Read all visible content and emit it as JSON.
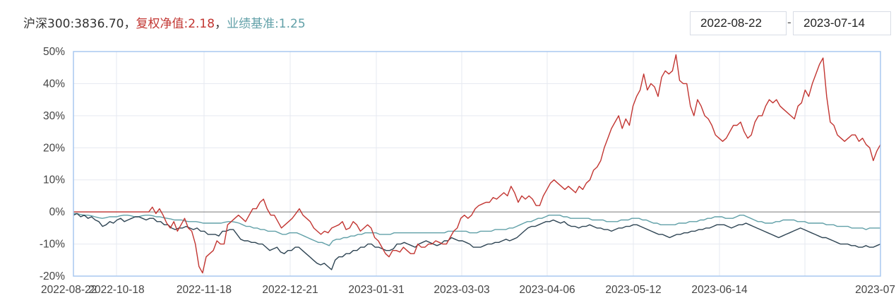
{
  "legend": {
    "hs300_label": "沪深300:3836.70",
    "sep1": "，",
    "nav_label": "复权净值:2.18",
    "sep2": "，",
    "bench_label": "业绩基准:1.25"
  },
  "date_range": {
    "start": "2022-08-22",
    "separator": "-",
    "end": "2023-07-14"
  },
  "chart_data": {
    "type": "line",
    "x_tick_labels": [
      "2022-08-22",
      "2022-10-18",
      "2022-11-18",
      "2022-12-21",
      "2023-01-31",
      "2023-03-03",
      "2023-04-06",
      "2023-05-12",
      "2023-06-14",
      "2023-07"
    ],
    "y_tick_labels": [
      "-20%",
      "-10%",
      "0%",
      "10%",
      "20%",
      "30%",
      "40%",
      "50%"
    ],
    "ylim": [
      -20,
      50
    ],
    "y_unit": "%",
    "grid": true,
    "colors": {
      "nav": "#c23531",
      "hs300": "#2f4554",
      "bench": "#61a0a8",
      "border": "#a8c8f0",
      "grid": "#e6e9f0"
    },
    "series": [
      {
        "key": "nav",
        "values": [
          0,
          0,
          0,
          0,
          0,
          0,
          0,
          0,
          0,
          0,
          0,
          0,
          0,
          0,
          0,
          0,
          0,
          0,
          0,
          0,
          0,
          0,
          1.5,
          -0.5,
          1,
          -1,
          -3.5,
          -5,
          -3,
          -6,
          -4,
          -2,
          -5,
          -6,
          -10,
          -17,
          -19,
          -14,
          -13,
          -12,
          -9,
          -10,
          -10,
          -4,
          -3,
          -2,
          -1,
          -2,
          -3,
          -1,
          1,
          1,
          3,
          4,
          1,
          -1,
          -1,
          -3,
          -5,
          -4,
          -3,
          -2,
          -0.5,
          1,
          -1,
          -2,
          -3,
          -5,
          -6,
          -7,
          -6,
          -6.5,
          -5,
          -4.5,
          -4,
          -3,
          -5.5,
          -5,
          -3,
          -4,
          -6,
          -5,
          -4,
          -5,
          -8,
          -9,
          -11,
          -13,
          -14,
          -12,
          -12,
          -12.5,
          -11,
          -12,
          -13,
          -13,
          -10,
          -11,
          -11,
          -10,
          -10,
          -9,
          -9.5,
          -10,
          -10,
          -8,
          -6,
          -5,
          -2,
          -1,
          -2,
          -1,
          1,
          2,
          2.5,
          3,
          3,
          4.5,
          4,
          5,
          6,
          5,
          8,
          6,
          3,
          5,
          4,
          5,
          4,
          2,
          2,
          5,
          7,
          9,
          10,
          9,
          8,
          7,
          8,
          7,
          6,
          8,
          7,
          9,
          10,
          13,
          14,
          16,
          20,
          23,
          26,
          28,
          30,
          26,
          29,
          27,
          33,
          36,
          38,
          43,
          38,
          40,
          39,
          36,
          42,
          44,
          43,
          44,
          49,
          41,
          40,
          40,
          33,
          30,
          35,
          33,
          30,
          29,
          27,
          24,
          23,
          22,
          23,
          25,
          27,
          27,
          28,
          25,
          23,
          24,
          28,
          30,
          30,
          33,
          35,
          34,
          35,
          33,
          32,
          31,
          30,
          29,
          33,
          34,
          38,
          36,
          40,
          43,
          46,
          48,
          36,
          28,
          27,
          24,
          23,
          22,
          23,
          24,
          24,
          22,
          23,
          21,
          20,
          16,
          19,
          21
        ]
      },
      {
        "key": "hs300",
        "values": [
          -1,
          -0.5,
          -1.5,
          -1,
          -2,
          -1.5,
          -2.5,
          -3,
          -4.5,
          -4,
          -3,
          -3.5,
          -2.5,
          -2,
          -3,
          -2.5,
          -2,
          -1.5,
          -1.5,
          -2,
          -2.5,
          -2,
          -2,
          -3,
          -3,
          -4,
          -4,
          -5,
          -5.5,
          -5,
          -5,
          -4.5,
          -5,
          -5.5,
          -5,
          -6,
          -6,
          -7,
          -7,
          -7,
          -7.5,
          -6,
          -6,
          -5.5,
          -5.5,
          -7,
          -8.5,
          -9,
          -9,
          -9.5,
          -9.5,
          -10,
          -10,
          -11,
          -12,
          -11.5,
          -11,
          -12.5,
          -13,
          -12,
          -12,
          -11,
          -11,
          -12,
          -13,
          -14,
          -15,
          -16,
          -16.5,
          -16,
          -17,
          -18,
          -15,
          -14,
          -14,
          -13,
          -13,
          -12,
          -12,
          -11,
          -11,
          -10,
          -10,
          -11,
          -11,
          -11.5,
          -12,
          -12,
          -11.5,
          -10,
          -10,
          -9.5,
          -10,
          -10.5,
          -11,
          -10,
          -9.5,
          -9,
          -9.5,
          -10,
          -10.5,
          -10,
          -9,
          -9,
          -8,
          -8.5,
          -9,
          -9,
          -9.5,
          -10,
          -11,
          -11,
          -11,
          -10.5,
          -10,
          -10,
          -9.5,
          -9.5,
          -9,
          -8.5,
          -9,
          -8.5,
          -8,
          -7,
          -6,
          -5,
          -4.5,
          -4.5,
          -4,
          -3.5,
          -3,
          -3,
          -2.5,
          -3,
          -3.5,
          -3,
          -4,
          -4.5,
          -4.5,
          -5,
          -4.5,
          -4.5,
          -4,
          -4.5,
          -5,
          -5,
          -5.5,
          -5.5,
          -6,
          -5.5,
          -5,
          -5,
          -4.5,
          -4.5,
          -4,
          -4,
          -4.5,
          -5,
          -5.5,
          -6,
          -6.5,
          -7,
          -7,
          -7.5,
          -8,
          -7.5,
          -7,
          -7,
          -6.5,
          -6.5,
          -6,
          -6,
          -5.5,
          -5.5,
          -5,
          -5,
          -4.5,
          -4,
          -4,
          -4,
          -4.5,
          -5,
          -4.5,
          -4,
          -4,
          -3.5,
          -4,
          -4.5,
          -5,
          -5.5,
          -6,
          -6.5,
          -7,
          -7.5,
          -8,
          -7.5,
          -7,
          -6.5,
          -6,
          -5.5,
          -5,
          -5.5,
          -6,
          -6.5,
          -7,
          -7.5,
          -8,
          -8,
          -8.5,
          -9,
          -9.5,
          -10,
          -10,
          -10,
          -10.5,
          -10.5,
          -11,
          -11,
          -10.5,
          -11,
          -11,
          -10.5,
          -10
        ]
      },
      {
        "key": "bench",
        "values": [
          -0.5,
          -0.5,
          -0.8,
          -1,
          -1,
          -1.2,
          -1.5,
          -1.8,
          -2,
          -1.8,
          -1.5,
          -1.5,
          -1.5,
          -1.2,
          -1,
          -1,
          -1.2,
          -1.5,
          -1.5,
          -1.2,
          -1,
          -1,
          -1.2,
          -1.5,
          -1.5,
          -1.8,
          -2,
          -2.2,
          -2.5,
          -2.5,
          -2.5,
          -2.8,
          -3,
          -3,
          -3,
          -3.2,
          -3.5,
          -3.5,
          -3.5,
          -3.5,
          -3.5,
          -3.5,
          -3.2,
          -3,
          -3,
          -3.2,
          -3.5,
          -4,
          -4.5,
          -4.5,
          -5,
          -5,
          -5.5,
          -5.5,
          -6,
          -6,
          -6,
          -6.5,
          -7,
          -7,
          -6.5,
          -6.5,
          -6.5,
          -7,
          -7.5,
          -8,
          -8.5,
          -9,
          -9.5,
          -9.5,
          -10,
          -10.5,
          -9,
          -8.5,
          -8.5,
          -8,
          -8,
          -7.5,
          -7.5,
          -7,
          -7,
          -6.5,
          -6.5,
          -6.5,
          -6.5,
          -7,
          -7,
          -7,
          -7,
          -6.5,
          -6.5,
          -6.5,
          -6.5,
          -6.5,
          -6.5,
          -6.5,
          -6.5,
          -6.5,
          -6.5,
          -6.5,
          -6.5,
          -6.5,
          -6.5,
          -6.5,
          -6,
          -6,
          -6,
          -6,
          -6,
          -6,
          -6.5,
          -6.5,
          -6.5,
          -6,
          -6,
          -6,
          -6,
          -5.5,
          -5.5,
          -5.5,
          -5.5,
          -5,
          -5,
          -4.5,
          -4,
          -3.5,
          -3,
          -3,
          -2.5,
          -2,
          -2,
          -1.5,
          -1,
          -1,
          -1,
          -1,
          -1.5,
          -1.5,
          -2,
          -2,
          -2,
          -2,
          -2,
          -2,
          -2.5,
          -2.5,
          -2.5,
          -2.5,
          -3,
          -3,
          -3,
          -3,
          -2.5,
          -2.5,
          -2.5,
          -2,
          -2,
          -2,
          -2.5,
          -2.5,
          -3,
          -3.5,
          -3.5,
          -4,
          -4,
          -4,
          -4,
          -4,
          -3.5,
          -3.5,
          -3.5,
          -3,
          -3,
          -3,
          -2.5,
          -2.5,
          -2,
          -2,
          -1.5,
          -1.5,
          -1.5,
          -2,
          -2,
          -2,
          -1.5,
          -1,
          -1,
          -1.5,
          -2,
          -2.5,
          -3,
          -3,
          -3.5,
          -3.5,
          -3.5,
          -3,
          -3,
          -2.5,
          -2.5,
          -2.5,
          -2.5,
          -3,
          -3,
          -3,
          -3.5,
          -3.5,
          -3.5,
          -3.5,
          -3.5,
          -4,
          -4,
          -4,
          -4.5,
          -4.5,
          -4.5,
          -4.5,
          -5,
          -5,
          -5,
          -5,
          -5.5,
          -5,
          -5,
          -5,
          -5
        ]
      }
    ]
  }
}
